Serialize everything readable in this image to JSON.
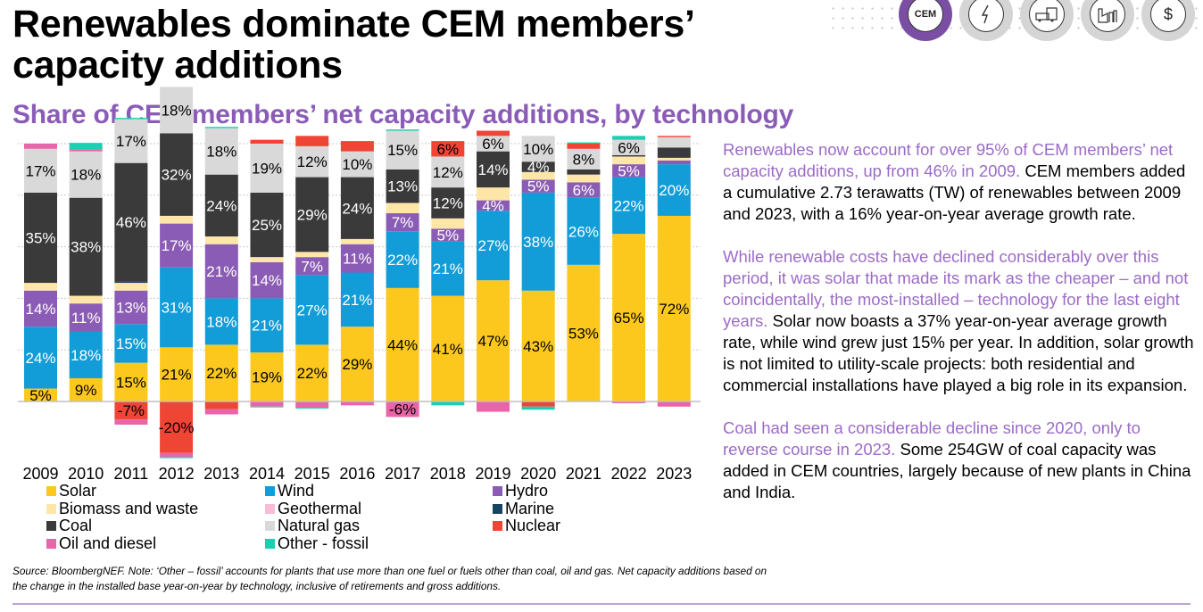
{
  "header": {
    "title": "Renewables dominate CEM members’ capacity additions",
    "subtitle": "Share of CEM members’ net capacity additions, by technology"
  },
  "nav_icons": [
    {
      "name": "cem-icon",
      "label": "CEM",
      "active": true
    },
    {
      "name": "lightning-icon",
      "label": "⚡",
      "active": false
    },
    {
      "name": "vehicles-icon",
      "label": "🚗",
      "active": false
    },
    {
      "name": "factory-icon",
      "label": "🏭",
      "active": false
    },
    {
      "name": "dollar-icon",
      "label": "$",
      "active": false
    }
  ],
  "colors": {
    "Solar": "#fdc81e",
    "Wind": "#129dd8",
    "Hydro": "#8b5cb5",
    "Biomass and waste": "#fde6a8",
    "Geothermal": "#f8bcd6",
    "Marine": "#17445f",
    "Coal": "#3a3a3a",
    "Natural gas": "#d9d9d9",
    "Nuclear": "#ef4535",
    "Oil and diesel": "#e964a8",
    "Other - fossil": "#1ccfb1"
  },
  "chart_data": {
    "type": "bar",
    "stacked": true,
    "title": "Share of CEM members’ net capacity additions, by technology",
    "xlabel": "",
    "ylabel": "",
    "ylim": [
      -25,
      100
    ],
    "grid": true,
    "legend_position": "bottom",
    "categories": [
      "2009",
      "2010",
      "2011",
      "2012",
      "2013",
      "2014",
      "2015",
      "2016",
      "2017",
      "2018",
      "2019",
      "2020",
      "2021",
      "2022",
      "2023"
    ],
    "series": [
      {
        "name": "Solar",
        "values": [
          5,
          9,
          15,
          21,
          22,
          19,
          22,
          29,
          44,
          41,
          47,
          43,
          53,
          65,
          72
        ],
        "labels": [
          "5%",
          "9%",
          "15%",
          "21%",
          "22%",
          "19%",
          "22%",
          "29%",
          "44%",
          "41%",
          "47%",
          "43%",
          "53%",
          "65%",
          "72%"
        ]
      },
      {
        "name": "Wind",
        "values": [
          24,
          18,
          15,
          31,
          18,
          21,
          27,
          21,
          22,
          21,
          27,
          38,
          26,
          22,
          20
        ],
        "labels": [
          "24%",
          "18%",
          "15%",
          "31%",
          "18%",
          "21%",
          "27%",
          "21%",
          "22%",
          "21%",
          "27%",
          "38%",
          "26%",
          "22%",
          "20%"
        ]
      },
      {
        "name": "Hydro",
        "values": [
          14,
          11,
          13,
          17,
          21,
          14,
          7,
          11,
          7,
          5,
          4,
          5,
          6,
          5,
          1.5
        ],
        "labels": [
          "14%",
          "11%",
          "13%",
          "17%",
          "21%",
          "14%",
          "7%",
          "11%",
          "7%",
          "5%",
          "4%",
          "5%",
          "6%",
          "5%",
          ""
        ]
      },
      {
        "name": "Biomass and waste",
        "values": [
          3,
          3,
          3,
          3,
          3,
          2,
          2,
          2,
          4,
          4,
          5,
          3,
          3,
          3,
          1
        ],
        "labels": [
          "",
          "",
          "",
          "",
          "",
          "",
          "",
          "",
          "",
          "",
          "",
          "",
          "",
          "",
          ""
        ]
      },
      {
        "name": "Geothermal",
        "values": [
          0,
          0,
          0,
          0,
          0,
          0,
          0,
          0,
          0,
          0,
          0,
          0,
          0,
          0,
          0
        ],
        "labels": [
          "",
          "",
          "",
          "",
          "",
          "",
          "",
          "",
          "",
          "",
          "",
          "",
          "",
          "",
          ""
        ]
      },
      {
        "name": "Marine",
        "values": [
          0,
          0,
          0.5,
          0,
          0,
          0,
          0,
          0,
          0,
          0,
          0,
          0,
          0,
          0,
          0
        ],
        "labels": [
          "",
          "",
          "",
          "",
          "",
          "",
          "",
          "",
          "",
          "",
          "",
          "",
          "",
          "",
          ""
        ]
      },
      {
        "name": "Coal",
        "values": [
          35,
          38,
          46,
          32,
          24,
          25,
          29,
          24,
          13,
          12,
          14,
          4,
          2,
          0.5,
          4
        ],
        "labels": [
          "35%",
          "38%",
          "46%",
          "32%",
          "24%",
          "25%",
          "29%",
          "24%",
          "13%",
          "12%",
          "14%",
          "4%",
          "",
          "",
          ""
        ]
      },
      {
        "name": "Natural gas",
        "values": [
          17,
          18,
          17,
          18,
          18,
          19,
          12,
          10,
          15,
          12,
          6,
          10,
          8,
          6,
          4
        ],
        "labels": [
          "17%",
          "18%",
          "17%",
          "18%",
          "18%",
          "19%",
          "12%",
          "10%",
          "15%",
          "12%",
          "6%",
          "10%",
          "8%",
          "6%",
          ""
        ]
      },
      {
        "name": "Nuclear",
        "values": [
          0,
          0,
          -7,
          -20,
          -3,
          1.5,
          4,
          4,
          0,
          6,
          2,
          -2,
          2,
          -0.3,
          0.5
        ],
        "labels": [
          "",
          "",
          "-7%",
          "-20%",
          "",
          "",
          "",
          "",
          "",
          "6%",
          "",
          "",
          "",
          "",
          ""
        ]
      },
      {
        "name": "Oil and diesel",
        "values": [
          2,
          0.8,
          -2,
          -1.5,
          -2,
          -2,
          -2.5,
          -1.5,
          -6,
          0,
          -4,
          0,
          0,
          -0.4,
          -2
        ],
        "labels": [
          "",
          "",
          "",
          "",
          "",
          "",
          "",
          "",
          "-6%",
          "",
          "",
          "",
          "",
          "",
          ""
        ]
      },
      {
        "name": "Other - fossil",
        "values": [
          0,
          2.5,
          0.5,
          -0.5,
          0.5,
          -0.3,
          -0.3,
          0,
          0.5,
          -1.5,
          0,
          -1.2,
          0.5,
          1.5,
          0
        ],
        "labels": [
          "",
          "",
          "",
          "",
          "",
          "",
          "",
          "",
          "",
          "",
          "",
          "",
          "",
          "",
          ""
        ]
      }
    ]
  },
  "legend": [
    {
      "name": "Solar"
    },
    {
      "name": "Wind"
    },
    {
      "name": "Hydro"
    },
    {
      "name": "Biomass and waste"
    },
    {
      "name": "Geothermal"
    },
    {
      "name": "Marine"
    },
    {
      "name": "Coal"
    },
    {
      "name": "Natural gas"
    },
    {
      "name": "Nuclear"
    },
    {
      "name": "Oil and diesel"
    },
    {
      "name": "Other - fossil"
    }
  ],
  "body": {
    "p1_highlight": "Renewables now account for over 95% of CEM members’ net capacity additions, up from 46% in 2009.",
    "p1_rest": " CEM members added a cumulative 2.73 terawatts (TW) of renewables between 2009 and 2023, with a 16% year-on-year average growth rate.",
    "p2_highlight": "While renewable costs have declined considerably over this period, it was solar that made its mark as the cheaper – and not coincidentally, the most-installed – technology for the last eight years.",
    "p2_rest": " Solar now boasts a 37% year-on-year average growth rate, while wind grew just 15% per year. In addition, solar growth is not limited to utility-scale projects: both residential and commercial installations have played a big role in its expansion.",
    "p3_highlight": "Coal had seen a considerable decline since 2020, only to reverse course in 2023.",
    "p3_rest": " Some 254GW of coal capacity was added in CEM countries, largely because of new plants in China and India."
  },
  "source": "Source: BloombergNEF. Note: ‘Other – fossil’ accounts for plants that use more than one fuel or fuels other than coal, oil and gas. Net capacity additions based on the change in the installed base year-on-year by technology, inclusive of retirements and gross additions."
}
